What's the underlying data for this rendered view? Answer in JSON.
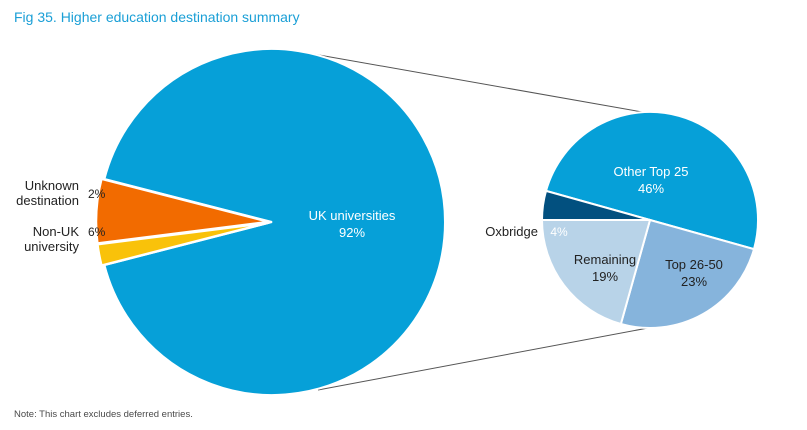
{
  "figure": {
    "title": "Fig 35. Higher education destination summary",
    "note": "Note: This chart excludes deferred entries."
  },
  "colors": {
    "uk": "#06a0d8",
    "unknown": "#f9c20a",
    "non_uk": "#f26b00",
    "other_top25": "#06a0d8",
    "oxbridge": "#02507f",
    "remaining": "#b8d3e8",
    "top26_50": "#86b4dc",
    "connector": "#555555"
  },
  "chart_data": [
    {
      "type": "pie",
      "title": "",
      "slices": [
        {
          "label": "UK universities",
          "value": 92,
          "display": "92%"
        },
        {
          "label": "Unknown destination",
          "label_lines": [
            "Unknown",
            "destination"
          ],
          "value": 2,
          "display": "2%"
        },
        {
          "label": "Non-UK university",
          "label_lines": [
            "Non-UK",
            "university"
          ],
          "value": 6,
          "display": "6%"
        }
      ],
      "exploded": [
        "Unknown destination",
        "Non-UK university"
      ]
    },
    {
      "type": "pie",
      "title": "",
      "breakdown_of": "UK universities",
      "slices": [
        {
          "label": "Other Top 25",
          "value": 46,
          "display": "46%"
        },
        {
          "label": "Top 26-50",
          "value": 23,
          "display": "23%"
        },
        {
          "label": "Remaining",
          "value": 19,
          "display": "19%"
        },
        {
          "label": "Oxbridge",
          "value": 4,
          "display": "4%"
        }
      ]
    }
  ]
}
